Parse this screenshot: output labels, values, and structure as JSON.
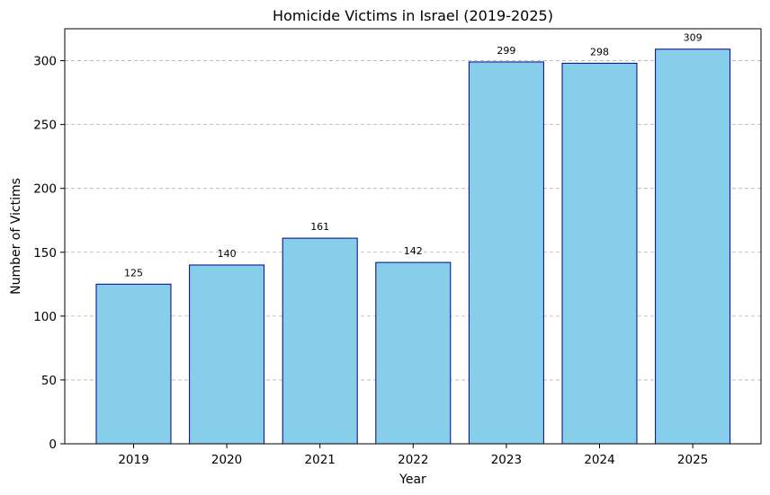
{
  "chart_data": {
    "type": "bar",
    "title": "Homicide Victims in Israel (2019-2025)",
    "xlabel": "Year",
    "ylabel": "Number of Victims",
    "categories": [
      "2019",
      "2020",
      "2021",
      "2022",
      "2023",
      "2024",
      "2025"
    ],
    "values": [
      125,
      140,
      161,
      142,
      299,
      298,
      309
    ],
    "data_labels": [
      "125",
      "140",
      "161",
      "142",
      "299",
      "298",
      "309"
    ],
    "ylim": [
      0,
      325
    ],
    "yticks": [
      0,
      50,
      100,
      150,
      200,
      250,
      300
    ],
    "ytick_labels": [
      "0",
      "50",
      "100",
      "150",
      "200",
      "250",
      "300"
    ],
    "grid": "y-axis dashed",
    "colors": {
      "bar_fill": "#87ceeb",
      "bar_edge": "#00008b",
      "grid": "#b0b0b0"
    }
  }
}
